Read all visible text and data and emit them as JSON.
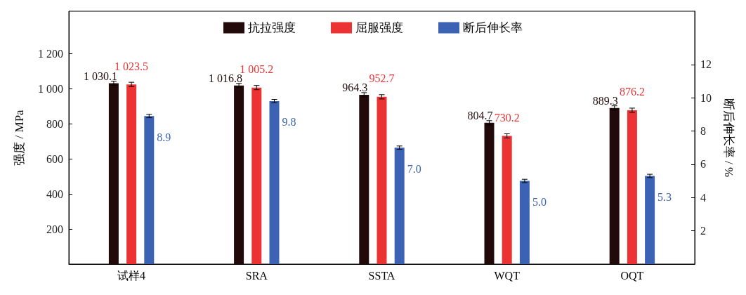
{
  "chart_data": {
    "type": "bar",
    "ylabel": "强度 / MPa",
    "y2label": "断后伸长率 / %",
    "categories": [
      "试样4",
      "SRA",
      "SSTA",
      "WQT",
      "OQT"
    ],
    "series": [
      {
        "name": "抗拉强度",
        "color": "#220a0a",
        "values": [
          1030.1,
          1016.8,
          964.3,
          804.7,
          889.3
        ],
        "value_labels": [
          "1 030.1",
          "1 016.8",
          "964.3",
          "804.7",
          "889.3"
        ],
        "errors": [
          12,
          12,
          12,
          12,
          12
        ]
      },
      {
        "name": "屈服强度",
        "color": "#ec3232",
        "values": [
          1023.5,
          1005.2,
          952.7,
          730.2,
          876.2
        ],
        "value_labels": [
          "1 023.5",
          "1 005.2",
          "952.7",
          "730.2",
          "876.2"
        ],
        "errors": [
          12,
          12,
          12,
          12,
          12
        ]
      },
      {
        "name": "断后伸长率",
        "color": "#3b62b3",
        "axis": "y2",
        "values": [
          8.9,
          9.8,
          7.0,
          5.0,
          5.3
        ],
        "value_labels": [
          "8.9",
          "9.8",
          "7.0",
          "5.0",
          "5.3"
        ],
        "errors": [
          0.1,
          0.1,
          0.1,
          0.1,
          0.1
        ]
      }
    ],
    "ylim": [
      0,
      1440
    ],
    "yticks": [
      200,
      400,
      600,
      800,
      1000,
      1200
    ],
    "y2lim": [
      0,
      15.2
    ],
    "y2ticks": [
      2,
      4,
      6,
      8,
      10,
      12
    ],
    "grid": false,
    "legend": "top"
  }
}
